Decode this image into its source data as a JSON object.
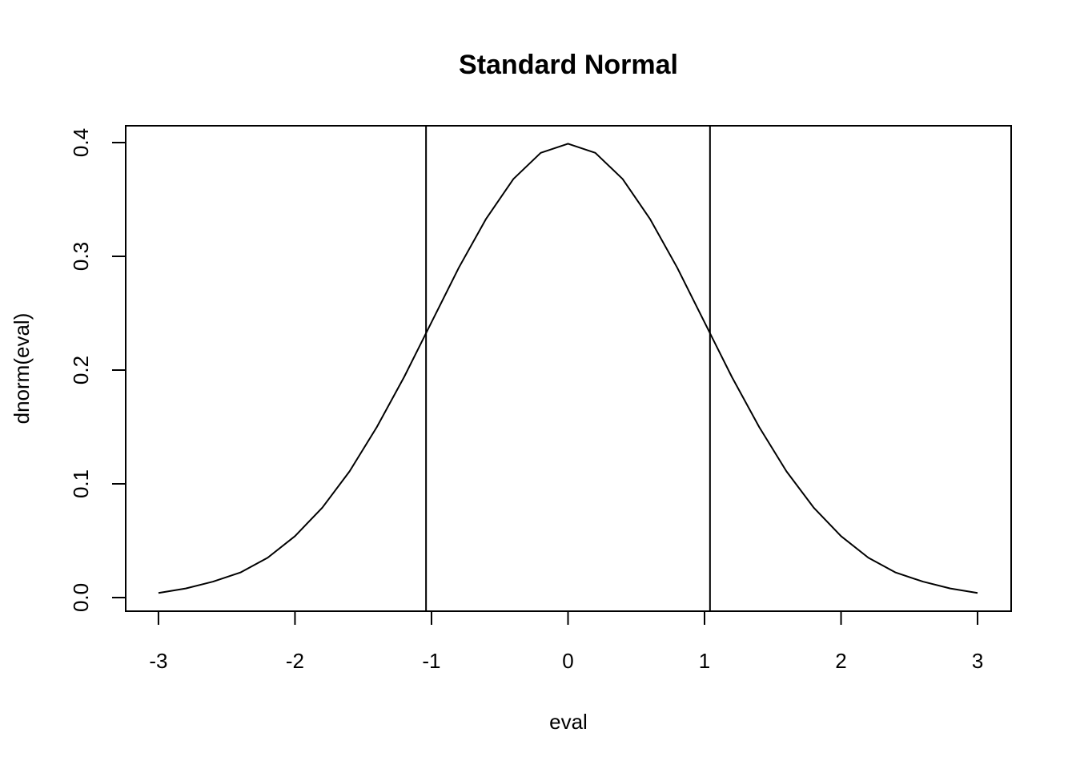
{
  "chart_data": {
    "type": "line",
    "title": "Standard Normal",
    "x_label": "eval",
    "y_label": "dnorm(eval)",
    "x": [
      -3,
      -2.8,
      -2.6,
      -2.4,
      -2.2,
      -2,
      -1.8,
      -1.6,
      -1.4,
      -1.2,
      -1,
      -0.8,
      -0.6,
      -0.4,
      -0.2,
      0,
      0.2,
      0.4,
      0.6,
      0.8,
      1,
      1.2,
      1.4,
      1.6,
      1.8,
      2,
      2.2,
      2.4,
      2.6,
      2.8,
      3
    ],
    "values": [
      0.004,
      0.008,
      0.014,
      0.022,
      0.035,
      0.054,
      0.079,
      0.111,
      0.15,
      0.194,
      0.242,
      0.29,
      0.333,
      0.368,
      0.391,
      0.399,
      0.391,
      0.368,
      0.333,
      0.29,
      0.242,
      0.194,
      0.15,
      0.111,
      0.079,
      0.054,
      0.035,
      0.022,
      0.014,
      0.008,
      0.004
    ],
    "color": "#000000",
    "vlines": [
      -1.04,
      1.04
    ],
    "xlim": [
      -3.24,
      3.246
    ],
    "ylim": [
      -0.012,
      0.4148
    ],
    "xticks": [
      -3,
      -2,
      -1,
      0,
      1,
      2,
      3
    ],
    "yticks": [
      {
        "value": 0,
        "label": "0.0"
      },
      0.1,
      0.2,
      0.3,
      0.4
    ]
  }
}
